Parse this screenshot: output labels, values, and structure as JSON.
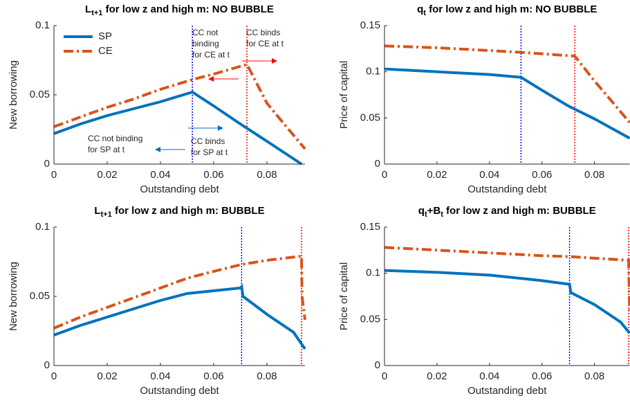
{
  "chart_data": [
    {
      "type": "line",
      "title": [
        {
          "text": "L"
        },
        {
          "text": "t+1",
          "sub": true
        },
        {
          "text": " for low z and high m: NO BUBBLE"
        }
      ],
      "xlabel": "Outstanding debt",
      "ylabel": "New borrowing",
      "xlim": [
        0,
        0.0943
      ],
      "ylim": [
        0,
        0.1
      ],
      "xticks": [
        0,
        0.02,
        0.04,
        0.06,
        0.08
      ],
      "yticks": [
        0,
        0.05,
        0.1
      ],
      "legend": "upper left",
      "series": [
        {
          "name": "SP",
          "color": "#0072bd",
          "x": [
            0,
            0.01,
            0.02,
            0.03,
            0.04,
            0.052,
            0.06,
            0.07,
            0.08,
            0.093
          ],
          "values": [
            0.022,
            0.029,
            0.035,
            0.04,
            0.045,
            0.052,
            0.042,
            0.029,
            0.0165,
            0
          ]
        },
        {
          "name": "CE",
          "color": "#d95319",
          "x": [
            0,
            0.01,
            0.02,
            0.03,
            0.04,
            0.052,
            0.06,
            0.0725,
            0.08,
            0.086,
            0.0943
          ],
          "values": [
            0.027,
            0.034,
            0.041,
            0.047,
            0.054,
            0.061,
            0.065,
            0.072,
            0.044,
            0.03,
            0.011
          ]
        }
      ],
      "vlines": [
        {
          "x": 0.052,
          "color": "#0000ff"
        },
        {
          "x": 0.0725,
          "color": "#ff0000"
        }
      ],
      "annotations": [
        {
          "lines": [
            "CC not",
            "binding",
            "for CE at t"
          ],
          "color": "#ff0000"
        },
        {
          "lines": [
            "CC binds",
            "for CE at t"
          ],
          "color": "#ff0000"
        },
        {
          "lines": [
            "CC not binding",
            "for SP at t"
          ],
          "color": "#0072bd"
        },
        {
          "lines": [
            "CC binds",
            "for SP at t"
          ],
          "color": "#0072bd"
        }
      ]
    },
    {
      "type": "line",
      "title": [
        {
          "text": "q"
        },
        {
          "text": "t",
          "sub": true
        },
        {
          "text": " for low z and high m: NO BUBBLE"
        }
      ],
      "xlabel": "Outstanding debt",
      "ylabel": "Price of capital",
      "xlim": [
        0,
        0.0934
      ],
      "ylim": [
        0,
        0.15
      ],
      "xticks": [
        0,
        0.02,
        0.04,
        0.06,
        0.08
      ],
      "yticks": [
        0,
        0.05,
        0.1,
        0.15
      ],
      "series": [
        {
          "color": "#0072bd",
          "x": [
            0,
            0.02,
            0.04,
            0.052,
            0.06,
            0.07,
            0.08,
            0.0934
          ],
          "values": [
            0.103,
            0.1,
            0.097,
            0.094,
            0.08,
            0.063,
            0.049,
            0.028
          ]
        },
        {
          "color": "#d95319",
          "x": [
            0,
            0.02,
            0.04,
            0.052,
            0.0725,
            0.08,
            0.086,
            0.0934
          ],
          "values": [
            0.128,
            0.126,
            0.123,
            0.121,
            0.117,
            0.09,
            0.07,
            0.045
          ]
        }
      ],
      "vlines": [
        {
          "x": 0.052,
          "color": "#0000ff"
        },
        {
          "x": 0.0725,
          "color": "#ff0000"
        }
      ]
    },
    {
      "type": "line",
      "title": [
        {
          "text": "L"
        },
        {
          "text": "t+1",
          "sub": true
        },
        {
          "text": " for low z and high m: BUBBLE"
        }
      ],
      "xlabel": "Outstanding debt",
      "ylabel": "New borrowing",
      "xlim": [
        0,
        0.0943
      ],
      "ylim": [
        0,
        0.1
      ],
      "xticks": [
        0,
        0.02,
        0.04,
        0.06,
        0.08
      ],
      "yticks": [
        0,
        0.05,
        0.1
      ],
      "series": [
        {
          "color": "#0072bd",
          "x": [
            0,
            0.01,
            0.02,
            0.03,
            0.04,
            0.05,
            0.06,
            0.07,
            0.0705,
            0.071,
            0.08,
            0.09,
            0.0943
          ],
          "values": [
            0.022,
            0.029,
            0.035,
            0.041,
            0.047,
            0.052,
            0.054,
            0.056,
            0.057,
            0.05,
            0.037,
            0.024,
            0.012
          ]
        },
        {
          "color": "#d95319",
          "x": [
            0,
            0.01,
            0.02,
            0.03,
            0.04,
            0.05,
            0.06,
            0.0705,
            0.08,
            0.093,
            0.0932,
            0.0943
          ],
          "values": [
            0.027,
            0.035,
            0.042,
            0.049,
            0.056,
            0.063,
            0.068,
            0.073,
            0.076,
            0.079,
            0.05,
            0.033
          ]
        }
      ],
      "vlines": [
        {
          "x": 0.0705,
          "color": "#0000ff"
        },
        {
          "x": 0.093,
          "color": "#ff0000"
        }
      ]
    },
    {
      "type": "line",
      "title": [
        {
          "text": "q"
        },
        {
          "text": "t",
          "sub": true
        },
        {
          "text": "+B"
        },
        {
          "text": "t",
          "sub": true
        },
        {
          "text": " for low z and high m: BUBBLE"
        }
      ],
      "xlabel": "Outstanding debt",
      "ylabel": "Price of capital",
      "xlim": [
        0,
        0.0934
      ],
      "ylim": [
        0,
        0.15
      ],
      "xticks": [
        0,
        0.02,
        0.04,
        0.06,
        0.08
      ],
      "yticks": [
        0,
        0.05,
        0.1,
        0.15
      ],
      "series": [
        {
          "color": "#0072bd",
          "x": [
            0,
            0.02,
            0.04,
            0.06,
            0.0705,
            0.071,
            0.08,
            0.09,
            0.0934
          ],
          "values": [
            0.103,
            0.101,
            0.098,
            0.092,
            0.088,
            0.079,
            0.066,
            0.047,
            0.035
          ]
        },
        {
          "color": "#d95319",
          "x": [
            0,
            0.02,
            0.04,
            0.06,
            0.0705,
            0.093,
            0.0932,
            0.0934
          ],
          "values": [
            0.128,
            0.125,
            0.122,
            0.119,
            0.118,
            0.114,
            0.085,
            0.06
          ]
        }
      ],
      "vlines": [
        {
          "x": 0.0705,
          "color": "#0000ff"
        },
        {
          "x": 0.093,
          "color": "#ff0000"
        }
      ]
    }
  ]
}
